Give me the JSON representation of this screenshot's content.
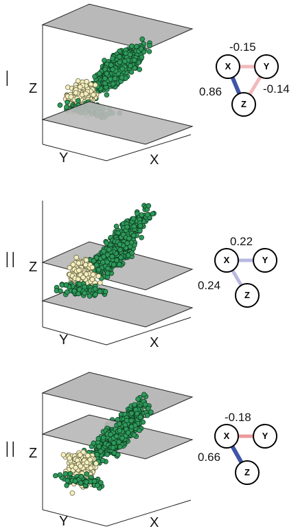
{
  "panels": [
    {
      "label": "I",
      "axes": {
        "z": "Z",
        "y": "Y",
        "x": "X"
      },
      "graph": {
        "nodes": {
          "x": "X",
          "y": "Y",
          "z": "Z"
        },
        "edges": {
          "xy": {
            "label": "-0.15",
            "value": -0.15
          },
          "yz": {
            "label": "-0.14",
            "value": -0.14
          },
          "xz": {
            "label": "0.86",
            "value": 0.86
          }
        }
      }
    },
    {
      "label": "II",
      "axes": {
        "z": "Z",
        "y": "Y",
        "x": "X"
      },
      "graph": {
        "nodes": {
          "x": "X",
          "y": "Y",
          "z": "Z"
        },
        "edges": {
          "xy": {
            "label": "0.22",
            "value": 0.22
          },
          "xz": {
            "label": "0.24",
            "value": 0.24
          }
        }
      }
    },
    {
      "label": "II",
      "axes": {
        "z": "Z",
        "y": "Y",
        "x": "X"
      },
      "graph": {
        "nodes": {
          "x": "X",
          "y": "Y",
          "z": "Z"
        },
        "edges": {
          "xy": {
            "label": "-0.18",
            "value": -0.18
          },
          "xz": {
            "label": "0.66",
            "value": 0.66
          }
        }
      }
    }
  ],
  "colors": {
    "plane_fill": "#b9b9b9",
    "plane_stroke": "#222222",
    "green_point": "#2e9a5a",
    "green_edge": "#0e3d22",
    "cream_point": "#f5efbf",
    "cream_edge": "#6d6a4a",
    "positive_strong": "#3f55a8",
    "positive_weak": "#b7b8df",
    "negative_weak": "#f2b9bb",
    "negative_mid": "#ec9a9c"
  }
}
